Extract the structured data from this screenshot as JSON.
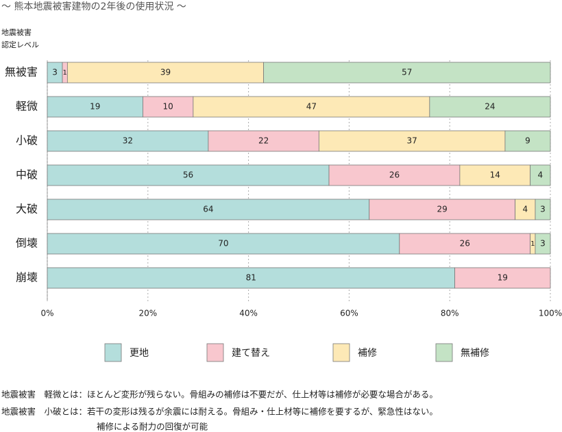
{
  "chart_data": {
    "type": "stacked-bar-horizontal",
    "title": "～ 熊本地震被害建物の2年後の使用状況 ～",
    "y_axis_label": [
      "地震被害",
      "認定レベル"
    ],
    "categories": [
      "無被害",
      "軽微",
      "小破",
      "中破",
      "大破",
      "倒壊",
      "崩壊"
    ],
    "series": [
      {
        "name": "更地",
        "color": "#b4dedc",
        "values": [
          3,
          19,
          32,
          56,
          64,
          70,
          81
        ]
      },
      {
        "name": "建て替え",
        "color": "#f8c7ce",
        "values": [
          1,
          10,
          22,
          26,
          29,
          26,
          19
        ]
      },
      {
        "name": "補修",
        "color": "#fde9b6",
        "values": [
          39,
          47,
          37,
          14,
          4,
          1,
          0
        ]
      },
      {
        "name": "無補修",
        "color": "#c4e3c5",
        "values": [
          57,
          24,
          9,
          4,
          3,
          3,
          0
        ]
      }
    ],
    "xlim": [
      0,
      100
    ],
    "xticks": [
      {
        "value": 0,
        "label": "0%"
      },
      {
        "value": 20,
        "label": "20%"
      },
      {
        "value": 40,
        "label": "40%"
      },
      {
        "value": 60,
        "label": "60%"
      },
      {
        "value": 80,
        "label": "80%"
      },
      {
        "value": 100,
        "label": "100%"
      }
    ],
    "grid": true,
    "notes": [
      "地震被害　軽微とは：ほとんど変形が残らない。骨組みの補修は不要だが、仕上材等は補修が必要な場合がある。",
      "地震被害　小破とは：若干の変形は残るが余震には耐える。骨組み・仕上材等に補修を要するが、緊急性はない。",
      "補修による耐力の回復が可能"
    ]
  }
}
